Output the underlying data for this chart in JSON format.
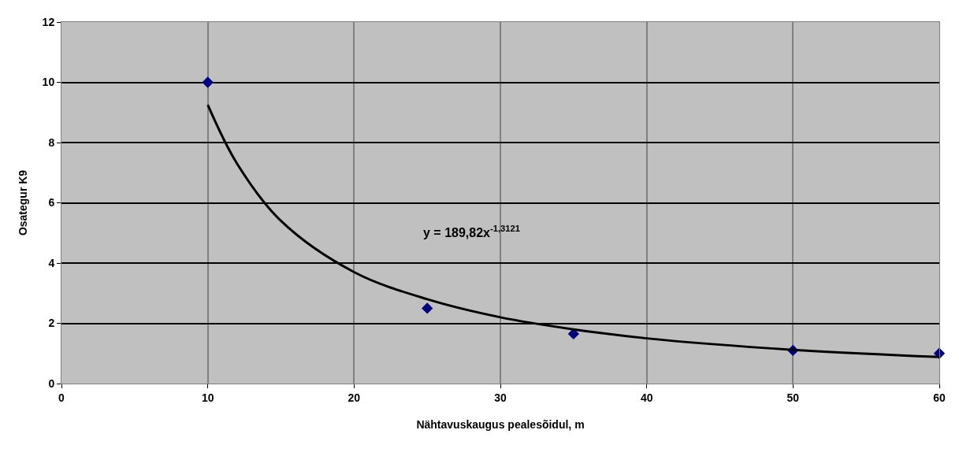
{
  "chart_data": {
    "type": "scatter",
    "xlabel": "Nähtavuskaugus pealesõidul, m",
    "ylabel": "Osategur K9",
    "x": [
      10,
      25,
      35,
      50,
      60
    ],
    "series": [
      {
        "color": "#000080",
        "marker": "diamond",
        "values": [
          10,
          2.5,
          1.65,
          1.1,
          1.0
        ]
      },
      {
        "type": "line",
        "color": "#000000",
        "marker": "none",
        "x": [
          10,
          12,
          15,
          20,
          25,
          30,
          35,
          40,
          50,
          60
        ],
        "values": [
          9.25,
          7.3,
          5.4,
          3.7,
          2.8,
          2.2,
          1.8,
          1.5,
          1.12,
          0.88
        ]
      }
    ],
    "annotations": [
      "y = 189,82x$^{-1,3121}$"
    ],
    "xlim": [
      0,
      60
    ],
    "xticks": [
      0,
      10,
      20,
      30,
      40,
      50,
      60
    ],
    "ylim": [
      0,
      12
    ],
    "yticks": [
      0,
      2,
      4,
      6,
      8,
      10,
      12
    ],
    "grid": true
  }
}
